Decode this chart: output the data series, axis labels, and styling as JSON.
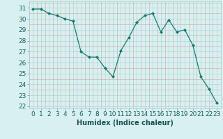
{
  "x": [
    0,
    1,
    2,
    3,
    4,
    5,
    6,
    7,
    8,
    9,
    10,
    11,
    12,
    13,
    14,
    15,
    16,
    17,
    18,
    19,
    20,
    21,
    22,
    23
  ],
  "y": [
    30.9,
    30.9,
    30.5,
    30.3,
    30.0,
    29.8,
    27.0,
    26.5,
    26.5,
    25.5,
    24.7,
    27.1,
    28.3,
    29.7,
    30.3,
    30.5,
    28.8,
    29.9,
    28.8,
    29.0,
    27.6,
    24.7,
    23.6,
    22.3
  ],
  "line_color": "#1a7a6e",
  "marker": "D",
  "marker_size": 2.0,
  "bg_color": "#d8f0f0",
  "grid_color": "#b8d8d8",
  "xlabel": "Humidex (Indice chaleur)",
  "ylabel_ticks": [
    22,
    23,
    24,
    25,
    26,
    27,
    28,
    29,
    30,
    31
  ],
  "xtick_labels": [
    "0",
    "1",
    "2",
    "3",
    "4",
    "5",
    "6",
    "7",
    "8",
    "9",
    "10",
    "11",
    "12",
    "13",
    "14",
    "15",
    "16",
    "17",
    "18",
    "19",
    "20",
    "21",
    "22",
    "23"
  ],
  "ylim": [
    21.8,
    31.6
  ],
  "xlim": [
    -0.5,
    23.5
  ],
  "xlabel_fontsize": 7,
  "tick_fontsize": 6.5
}
